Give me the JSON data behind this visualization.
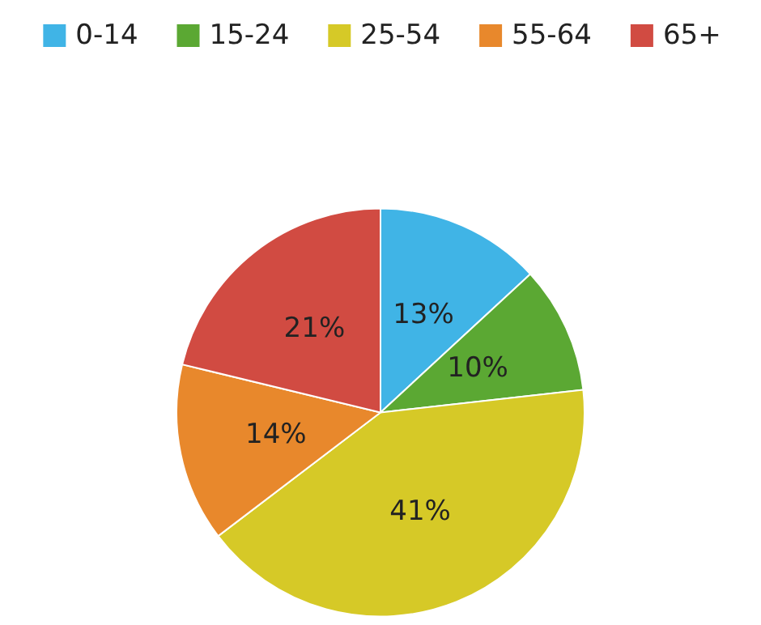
{
  "chart_data": {
    "type": "pie",
    "categories": [
      "0-14",
      "15-24",
      "25-54",
      "55-64",
      "65+"
    ],
    "values": [
      13,
      10,
      41,
      14,
      21
    ],
    "value_labels": [
      "13%",
      "10%",
      "41%",
      "14%",
      "21%"
    ],
    "colors": [
      "#40b4e6",
      "#5ba833",
      "#d6c927",
      "#e8882c",
      "#d14b42"
    ],
    "legend": "top"
  }
}
